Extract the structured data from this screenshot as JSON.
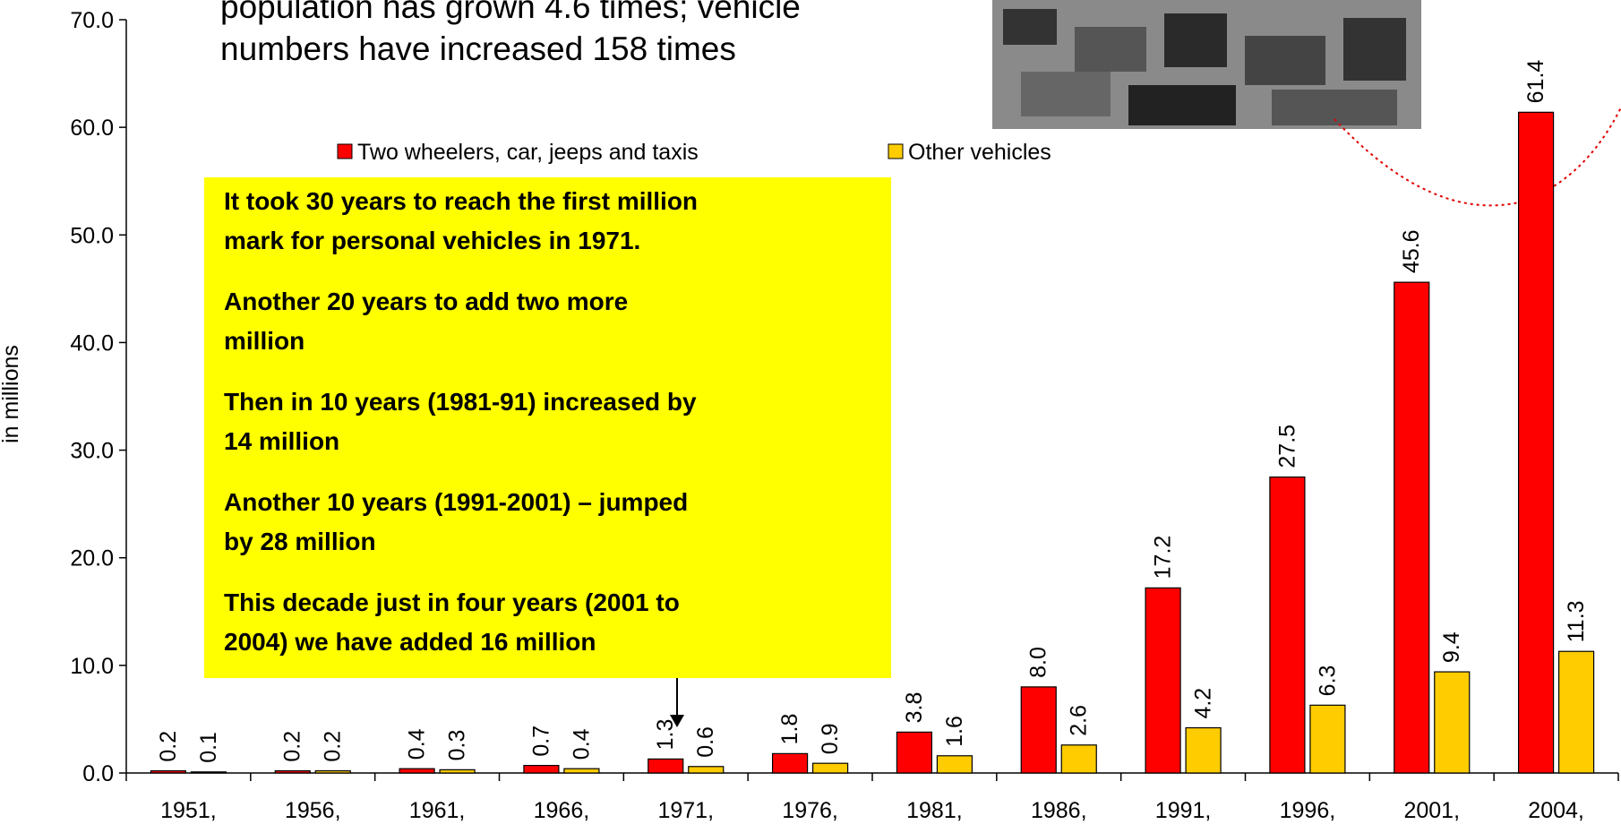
{
  "chart_data": {
    "type": "bar",
    "annotations": [
      "population has grown 4.6 times; vehicle",
      "numbers have increased 158 times"
    ],
    "box_text": [
      [
        "It took 30 years to reach the first million",
        "mark for personal vehicles in 1971."
      ],
      [
        "Another 20 years to add two more",
        "million"
      ],
      [
        "Then in 10 years (1981-91) increased by",
        "14 million"
      ],
      [
        "Another 10 years (1991-2001) – jumped",
        "by 28 million"
      ],
      [
        "This decade just in four years (2001 to",
        "2004) we have added 16 million"
      ]
    ],
    "ylabel": "in millions",
    "categories": [
      "1951,",
      "1956,",
      "1961,",
      "1966,",
      "1971,",
      "1976,",
      "1981,",
      "1986,",
      "1991,",
      "1996,",
      "2001,",
      "2004,"
    ],
    "series": [
      {
        "name": "Two wheelers, car, jeeps and taxis",
        "color": "#ff0000",
        "values": [
          0.2,
          0.2,
          0.4,
          0.7,
          1.3,
          1.8,
          3.8,
          8.0,
          17.2,
          27.5,
          45.6,
          61.4
        ],
        "value_labels": [
          "0.2",
          "0.2",
          "0.4",
          "0.7",
          "1.3",
          "1.8",
          "3.8",
          "8.0",
          "17.2",
          "27.5",
          "45.6",
          "61.4"
        ]
      },
      {
        "name": "Other vehicles",
        "color": "#ffcc00",
        "values": [
          0.1,
          0.2,
          0.3,
          0.4,
          0.6,
          0.9,
          1.6,
          2.6,
          4.2,
          6.3,
          9.4,
          11.3
        ],
        "value_labels": [
          "0.1",
          "0.2",
          "0.3",
          "0.4",
          "0.6",
          "0.9",
          "1.6",
          "2.6",
          "4.2",
          "6.3",
          "9.4",
          "11.3"
        ]
      }
    ],
    "ylim": [
      0,
      70
    ],
    "yticks": [
      {
        "value": 0,
        "label": "0.0"
      },
      {
        "value": 10,
        "label": "10.0"
      },
      {
        "value": 20,
        "label": "20.0"
      },
      {
        "value": 30,
        "label": "30.0"
      },
      {
        "value": 40,
        "label": "40.0"
      },
      {
        "value": 50,
        "label": "50.0"
      },
      {
        "value": 60,
        "label": "60.0"
      },
      {
        "value": 70,
        "label": "70.0"
      }
    ],
    "legend": "top",
    "grid": false
  }
}
